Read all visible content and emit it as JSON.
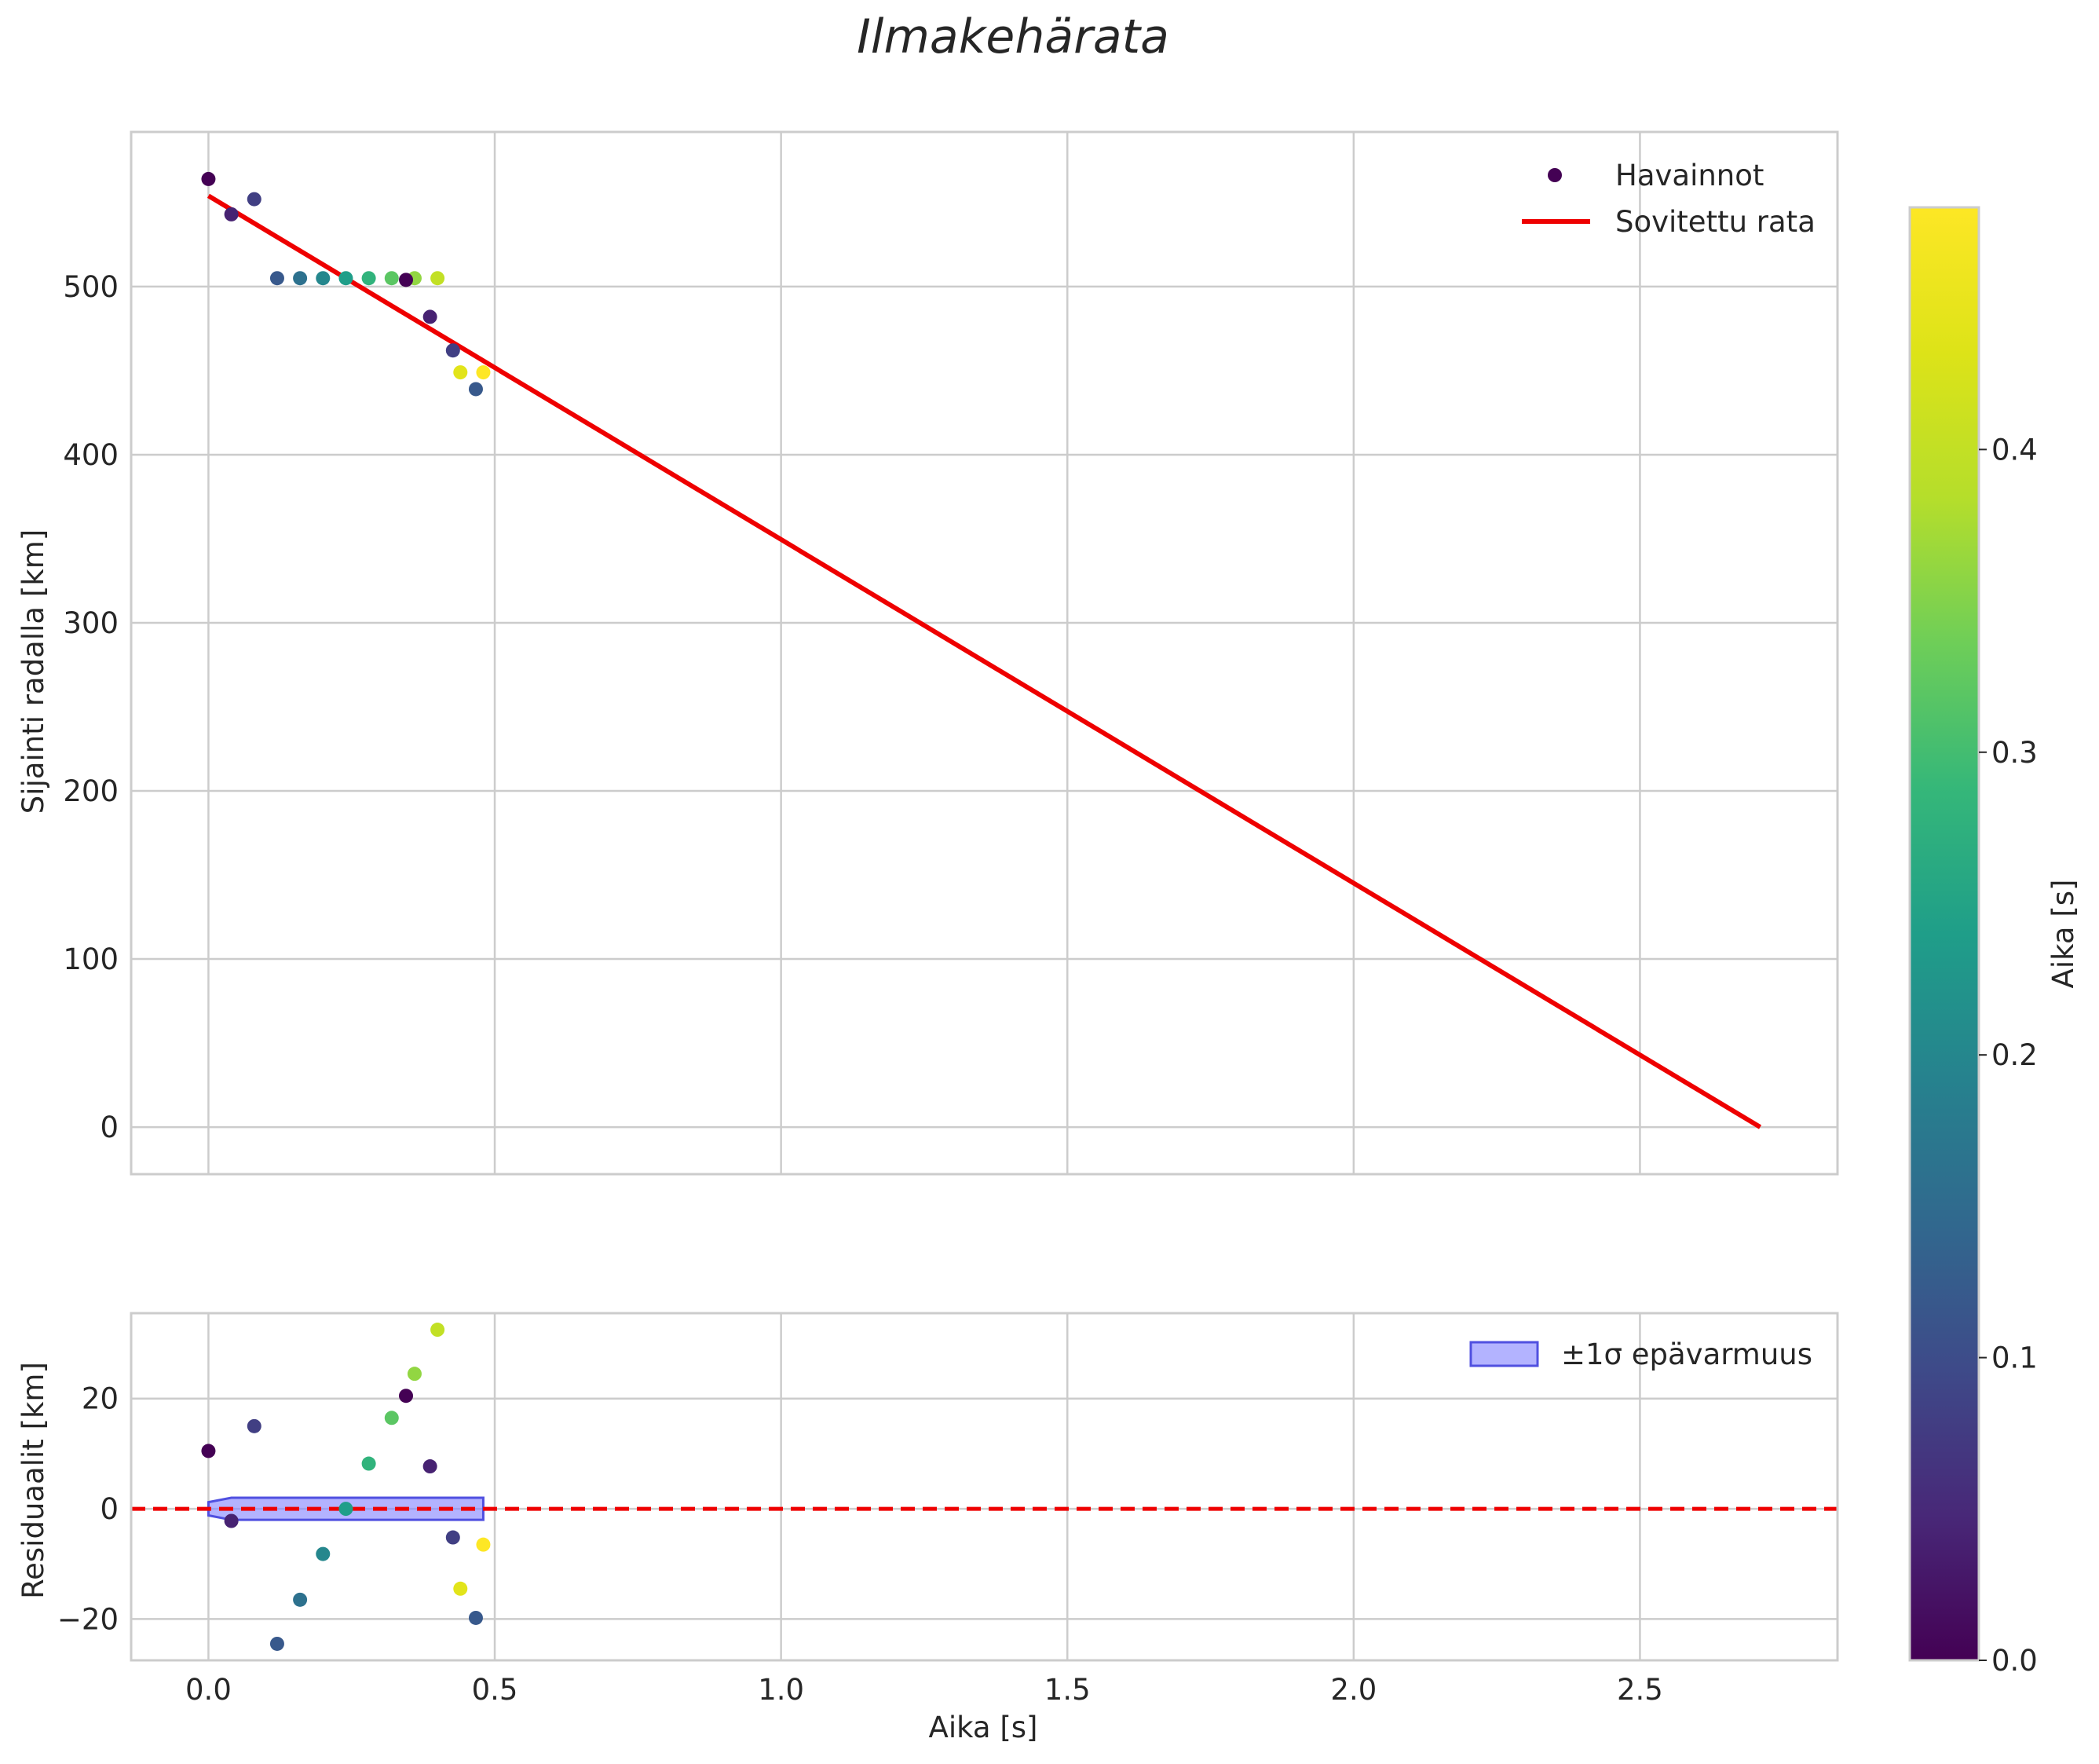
{
  "chart_data": {
    "title": "Ilmakehärata",
    "type": "scatter",
    "shared_x": {
      "xlabel": "Aika [s]",
      "xlim": [
        -0.135,
        2.845
      ],
      "xticks": [
        0.0,
        0.5,
        1.0,
        1.5,
        2.0,
        2.5
      ],
      "xtick_labels": [
        "0.0",
        "0.5",
        "1.0",
        "1.5",
        "2.0",
        "2.5"
      ]
    },
    "colorbar": {
      "label": "Aika [s]",
      "colormap": "viridis",
      "range": [
        0.0,
        0.48
      ],
      "ticks": [
        0.0,
        0.1,
        0.2,
        0.3,
        0.4
      ],
      "tick_labels": [
        "0.0",
        "0.1",
        "0.2",
        "0.3",
        "0.4"
      ]
    },
    "panels": [
      {
        "name": "trajectory",
        "ylabel": "Sijainti radalla [km]",
        "ylim": [
          -28,
          592
        ],
        "yticks": [
          0,
          100,
          200,
          300,
          400,
          500
        ],
        "ytick_labels": [
          "0",
          "100",
          "200",
          "300",
          "400",
          "500"
        ],
        "legend": [
          "Havainnot",
          "Sovitettu rata"
        ],
        "legend_position": "top-right",
        "series": [
          {
            "name": "Havainnot",
            "type": "scatter",
            "colored_by": "time",
            "points": [
              {
                "x": 0.0,
                "y": 564,
                "c": 0.0
              },
              {
                "x": 0.04,
                "y": 543,
                "c": 0.04
              },
              {
                "x": 0.08,
                "y": 552,
                "c": 0.08
              },
              {
                "x": 0.12,
                "y": 505,
                "c": 0.12
              },
              {
                "x": 0.16,
                "y": 505,
                "c": 0.16
              },
              {
                "x": 0.2,
                "y": 505,
                "c": 0.2
              },
              {
                "x": 0.24,
                "y": 505,
                "c": 0.24
              },
              {
                "x": 0.28,
                "y": 505,
                "c": 0.28
              },
              {
                "x": 0.32,
                "y": 505,
                "c": 0.32
              },
              {
                "x": 0.36,
                "y": 505,
                "c": 0.36
              },
              {
                "x": 0.4,
                "y": 505,
                "c": 0.4
              },
              {
                "x": 0.345,
                "y": 504,
                "c": 0.0
              },
              {
                "x": 0.387,
                "y": 482,
                "c": 0.04
              },
              {
                "x": 0.427,
                "y": 462,
                "c": 0.08
              },
              {
                "x": 0.467,
                "y": 439,
                "c": 0.12
              },
              {
                "x": 0.44,
                "y": 449,
                "c": 0.44
              },
              {
                "x": 0.48,
                "y": 449,
                "c": 0.48
              }
            ]
          },
          {
            "name": "Sovitettu rata",
            "type": "line",
            "color": "#ee0000",
            "x": [
              0.0,
              2.71
            ],
            "y": [
              554,
              0
            ]
          }
        ]
      },
      {
        "name": "residuals",
        "ylabel": "Residuaalit [km]",
        "ylim": [
          -27.5,
          35.5
        ],
        "yticks": [
          -20,
          0,
          20
        ],
        "ytick_labels": [
          "−20",
          "0",
          "20"
        ],
        "legend": [
          "±1σ epävarmuus"
        ],
        "legend_position": "top-right",
        "series": [
          {
            "name": "Residuaalit",
            "type": "scatter",
            "colored_by": "time",
            "points": [
              {
                "x": 0.0,
                "y": 10.5,
                "c": 0.0
              },
              {
                "x": 0.04,
                "y": -2.2,
                "c": 0.04
              },
              {
                "x": 0.08,
                "y": 15.0,
                "c": 0.08
              },
              {
                "x": 0.12,
                "y": -24.5,
                "c": 0.12
              },
              {
                "x": 0.16,
                "y": -16.5,
                "c": 0.16
              },
              {
                "x": 0.2,
                "y": -8.2,
                "c": 0.2
              },
              {
                "x": 0.24,
                "y": 0.0,
                "c": 0.24
              },
              {
                "x": 0.28,
                "y": 8.2,
                "c": 0.28
              },
              {
                "x": 0.32,
                "y": 16.5,
                "c": 0.32
              },
              {
                "x": 0.36,
                "y": 24.5,
                "c": 0.36
              },
              {
                "x": 0.4,
                "y": 32.5,
                "c": 0.4
              },
              {
                "x": 0.345,
                "y": 20.5,
                "c": 0.0
              },
              {
                "x": 0.387,
                "y": 7.7,
                "c": 0.04
              },
              {
                "x": 0.427,
                "y": -5.2,
                "c": 0.08
              },
              {
                "x": 0.467,
                "y": -19.8,
                "c": 0.12
              },
              {
                "x": 0.44,
                "y": -14.5,
                "c": 0.44
              },
              {
                "x": 0.48,
                "y": -6.5,
                "c": 0.48
              }
            ]
          },
          {
            "name": "Nollataso",
            "type": "hline",
            "y": 0,
            "color": "#ee0000",
            "style": "dashed"
          },
          {
            "name": "±1σ epävarmuus",
            "type": "band",
            "color": "#8080ff",
            "x": [
              0.0,
              0.04,
              0.48
            ],
            "upper": [
              1.2,
              2.0,
              2.0
            ],
            "lower": [
              -1.2,
              -2.0,
              -2.0
            ]
          }
        ]
      }
    ]
  }
}
